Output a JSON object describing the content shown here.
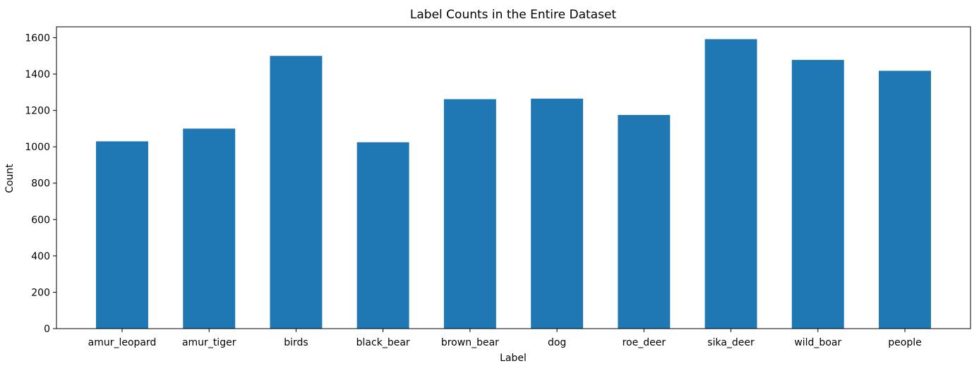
{
  "chart_data": {
    "type": "bar",
    "title": "Label Counts in the Entire Dataset",
    "xlabel": "Label",
    "ylabel": "Count",
    "categories": [
      "amur_leopard",
      "amur_tiger",
      "birds",
      "black_bear",
      "brown_bear",
      "dog",
      "roe_deer",
      "sika_deer",
      "wild_boar",
      "people"
    ],
    "values": [
      1030,
      1100,
      1500,
      1025,
      1262,
      1265,
      1175,
      1592,
      1478,
      1418
    ],
    "ylim": [
      0,
      1660
    ],
    "yticks": [
      0,
      200,
      400,
      600,
      800,
      1000,
      1200,
      1400,
      1600
    ],
    "grid": false,
    "bar_color": "#1f77b4"
  }
}
